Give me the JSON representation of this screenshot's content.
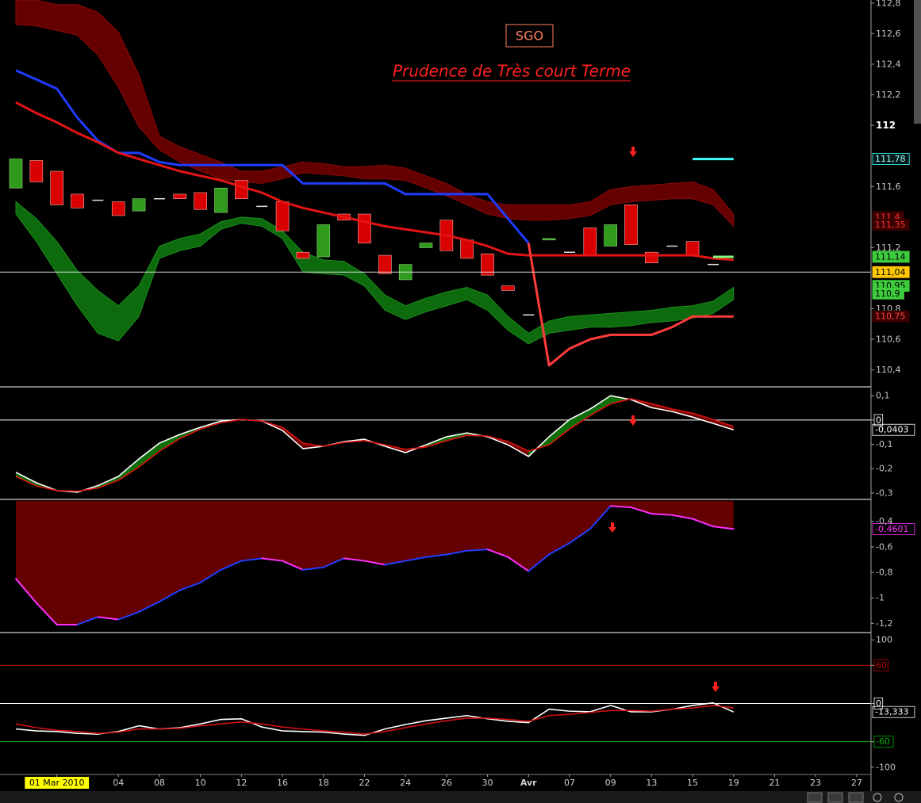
{
  "chart_data": [
    {
      "type": "candlestick",
      "title": "SGO",
      "subtitle": "Prudence de Très court Terme",
      "categories": [
        null,
        null,
        "01 Mar 2010",
        null,
        null,
        "04",
        null,
        "08",
        null,
        "10",
        null,
        "12",
        null,
        "16",
        null,
        "18",
        null,
        "22",
        null,
        "24",
        null,
        "26",
        null,
        "30",
        null,
        "Avr",
        null,
        "07",
        null,
        "09",
        null,
        "13",
        null,
        "15",
        null,
        "19",
        null,
        "21",
        null,
        "23",
        null,
        "27"
      ],
      "open": [
        111.59,
        111.77,
        111.7,
        111.55,
        111.51,
        111.5,
        111.44,
        111.52,
        111.55,
        111.56,
        111.43,
        111.64,
        111.47,
        111.5,
        111.17,
        111.14,
        111.42,
        111.42,
        111.15,
        110.99,
        111.2,
        111.38,
        111.25,
        111.16,
        110.95,
        110.76,
        111.25,
        111.17,
        111.33,
        111.21,
        111.48,
        111.17,
        111.21,
        111.24,
        111.09,
        null,
        null,
        null,
        null,
        null,
        null,
        null
      ],
      "close": [
        111.78,
        111.63,
        111.48,
        111.46,
        111.51,
        111.41,
        111.52,
        111.52,
        111.52,
        111.45,
        111.59,
        111.52,
        111.47,
        111.31,
        111.13,
        111.35,
        111.38,
        111.23,
        111.03,
        111.09,
        111.23,
        111.18,
        111.13,
        111.02,
        110.92,
        110.76,
        111.26,
        111.17,
        111.15,
        111.35,
        111.22,
        111.1,
        111.21,
        111.15,
        111.09,
        null,
        null,
        null,
        null,
        null,
        null,
        null
      ],
      "up_color": "#2f9a1c",
      "down_color": "#d80000",
      "doji_color": "#e0e0e0",
      "bands": [
        {
          "fill": "#640000",
          "stroke": "#8a0a0a",
          "upper": [
            112.82,
            112.82,
            112.79,
            112.79,
            112.74,
            112.61,
            112.33,
            111.93,
            111.86,
            111.81,
            111.76,
            111.7,
            111.7,
            111.73,
            111.76,
            111.75,
            111.73,
            111.73,
            111.74,
            111.72,
            111.67,
            111.62,
            111.55,
            111.5,
            111.48,
            111.48,
            111.48,
            111.48,
            111.5,
            111.58,
            111.6,
            111.61,
            111.62,
            111.63,
            111.58,
            111.42,
            null,
            null,
            null,
            null,
            null,
            null
          ],
          "lower": [
            112.66,
            112.65,
            112.62,
            112.59,
            112.46,
            112.25,
            111.99,
            111.84,
            111.76,
            111.7,
            111.65,
            111.63,
            111.62,
            111.65,
            111.69,
            111.68,
            111.67,
            111.65,
            111.65,
            111.64,
            111.59,
            111.54,
            111.48,
            111.42,
            111.39,
            111.38,
            111.38,
            111.39,
            111.41,
            111.48,
            111.5,
            111.51,
            111.52,
            111.52,
            111.48,
            111.34,
            null,
            null,
            null,
            null,
            null,
            null
          ]
        },
        {
          "fill": "#0d6a0d",
          "stroke": "#1e8c1e",
          "upper": [
            111.5,
            111.39,
            111.24,
            111.05,
            110.92,
            110.82,
            110.95,
            111.21,
            111.26,
            111.29,
            111.37,
            111.4,
            111.39,
            111.31,
            111.17,
            111.12,
            111.11,
            111.03,
            110.89,
            110.82,
            110.87,
            110.91,
            110.94,
            110.89,
            110.75,
            110.64,
            110.72,
            110.75,
            110.76,
            110.77,
            110.78,
            110.79,
            110.81,
            110.82,
            110.85,
            110.94,
            null,
            null,
            null,
            null,
            null,
            null
          ],
          "lower": [
            111.42,
            111.24,
            111.03,
            110.82,
            110.64,
            110.59,
            110.75,
            111.13,
            111.18,
            111.21,
            111.32,
            111.36,
            111.34,
            111.26,
            111.04,
            111.03,
            111.02,
            110.95,
            110.79,
            110.73,
            110.78,
            110.82,
            110.86,
            110.79,
            110.66,
            110.57,
            110.64,
            110.66,
            110.68,
            110.68,
            110.69,
            110.71,
            110.72,
            110.74,
            110.77,
            110.86,
            null,
            null,
            null,
            null,
            null,
            null
          ]
        }
      ],
      "series": [
        {
          "color": "#1f3cff",
          "values": [
            112.36,
            112.3,
            112.24,
            112.05,
            111.9,
            111.82,
            111.82,
            111.76,
            111.74,
            111.74,
            111.74,
            111.74,
            111.74,
            111.74,
            111.62,
            111.62,
            111.62,
            111.62,
            111.62,
            111.55,
            111.55,
            111.55,
            111.55,
            111.55,
            111.39,
            111.23,
            null,
            null,
            null,
            null,
            null,
            null,
            null,
            null,
            null,
            null,
            null,
            null,
            null,
            null,
            null,
            null
          ]
        },
        {
          "color": "#e41414",
          "values": [
            112.15,
            112.08,
            112.02,
            111.95,
            111.89,
            111.82,
            111.78,
            111.74,
            111.7,
            111.67,
            111.64,
            111.6,
            111.56,
            111.5,
            111.46,
            111.43,
            111.4,
            111.37,
            111.34,
            111.32,
            111.3,
            111.28,
            111.25,
            111.21,
            111.16,
            111.15,
            111.15,
            111.15,
            111.15,
            111.15,
            111.15,
            111.15,
            111.15,
            111.15,
            111.13,
            111.12,
            null,
            null,
            null,
            null,
            null,
            null
          ]
        },
        {
          "color": "#ff3b3b",
          "values": [
            null,
            null,
            null,
            null,
            null,
            null,
            null,
            null,
            null,
            null,
            null,
            null,
            null,
            null,
            null,
            null,
            null,
            null,
            null,
            null,
            null,
            null,
            null,
            null,
            null,
            111.23,
            110.43,
            110.54,
            110.6,
            110.63,
            110.63,
            110.63,
            110.68,
            110.75,
            110.75,
            110.75,
            null,
            null,
            null,
            null,
            null,
            null
          ]
        },
        {
          "color": "#40ffff",
          "values": [
            null,
            null,
            null,
            null,
            null,
            null,
            null,
            null,
            null,
            null,
            null,
            null,
            null,
            null,
            null,
            null,
            null,
            null,
            null,
            null,
            null,
            null,
            null,
            null,
            null,
            null,
            null,
            null,
            null,
            null,
            null,
            null,
            null,
            111.78,
            111.78,
            111.78,
            null,
            null,
            null,
            null,
            null,
            null
          ]
        },
        {
          "color": "#80ff80",
          "values": [
            null,
            null,
            null,
            null,
            null,
            null,
            null,
            null,
            null,
            null,
            null,
            null,
            null,
            null,
            null,
            null,
            null,
            null,
            null,
            null,
            null,
            null,
            null,
            null,
            null,
            null,
            null,
            null,
            null,
            null,
            null,
            null,
            null,
            null,
            111.14,
            111.14,
            null,
            null,
            null,
            null,
            null,
            null
          ]
        }
      ],
      "price_labels": [
        {
          "value": 111.78,
          "label": "111,78",
          "color": "#a8ffff",
          "background": "#001818",
          "border": "#40ffff"
        },
        {
          "value": 111.4,
          "label": "111,4",
          "color": "#ff3030",
          "background": "#3a0000"
        },
        {
          "value": 111.35,
          "label": "111,35",
          "color": "#ff3030",
          "background": "#3a0000"
        },
        {
          "value": 111.14,
          "label": "111,14",
          "color": "#000000",
          "background": "#3ccc3c"
        },
        {
          "value": 111.04,
          "label": "111,04",
          "color": "#000000",
          "background": "#ffc800",
          "line": "#d8d8d8"
        },
        {
          "value": 110.95,
          "label": "110,95",
          "color": "#000000",
          "background": "#3ccc3c"
        },
        {
          "value": 110.9,
          "label": "110,9",
          "color": "#000000",
          "background": "#3ccc3c"
        },
        {
          "value": 110.75,
          "label": "110,75",
          "color": "#ff4040",
          "background": "#3a0000"
        }
      ],
      "ylim": [
        110.3,
        112.82
      ],
      "yticks": [
        {
          "value": 112.8,
          "label": "112,8"
        },
        {
          "value": 112.6,
          "label": "112,6"
        },
        {
          "value": 112.4,
          "label": "112,4"
        },
        {
          "value": 112.2,
          "label": "112,2"
        },
        112,
        {
          "value": 111.6,
          "label": "111,6"
        },
        {
          "value": 111.2,
          "label": "111,2"
        },
        {
          "value": 110.8,
          "label": "110,8"
        },
        {
          "value": 110.6,
          "label": "110,6"
        },
        {
          "value": 110.4,
          "label": "110,4"
        }
      ]
    },
    {
      "type": "line",
      "series": [
        {
          "color": "#ffffff",
          "last_label": "-0,0403",
          "values": [
            -0.215,
            -0.258,
            -0.29,
            -0.297,
            -0.27,
            -0.232,
            -0.16,
            -0.095,
            -0.059,
            -0.03,
            -0.004,
            0.002,
            -0.004,
            -0.043,
            -0.118,
            -0.108,
            -0.089,
            -0.079,
            -0.108,
            -0.134,
            -0.102,
            -0.069,
            -0.053,
            -0.069,
            -0.102,
            -0.15,
            -0.069,
            0.002,
            0.045,
            0.1,
            0.084,
            0.051,
            0.035,
            0.012,
            -0.014,
            -0.0403,
            null,
            null,
            null,
            null,
            null,
            null
          ]
        },
        {
          "color": "#e01010",
          "values": [
            -0.232,
            -0.271,
            -0.29,
            -0.293,
            -0.28,
            -0.248,
            -0.193,
            -0.128,
            -0.076,
            -0.037,
            -0.011,
            0.002,
            -0.004,
            -0.03,
            -0.095,
            -0.108,
            -0.092,
            -0.085,
            -0.102,
            -0.121,
            -0.111,
            -0.085,
            -0.063,
            -0.066,
            -0.089,
            -0.128,
            -0.102,
            -0.037,
            0.018,
            0.067,
            0.087,
            0.067,
            0.045,
            0.028,
            0.002,
            -0.027,
            null,
            null,
            null,
            null,
            null,
            null
          ]
        }
      ],
      "fill_between": {
        "up_color": "#0b6e0b",
        "down_color": "#6e0000"
      },
      "levels": [
        {
          "value": 0,
          "color": "#ffffff"
        }
      ],
      "ylim": [
        -0.32,
        0.13
      ],
      "yticks": [
        {
          "value": 0.1,
          "label": "0,1"
        },
        0,
        {
          "value": -0.1,
          "label": "-0,1"
        },
        {
          "value": -0.2,
          "label": "-0,2"
        },
        {
          "value": -0.3,
          "label": "-0,3"
        }
      ]
    },
    {
      "type": "line",
      "series": [
        {
          "color": "#ff30ff",
          "rise_color": "#2040ff",
          "last_label": "-0,4601",
          "values": [
            -0.85,
            -1.04,
            -1.21,
            -1.21,
            -1.15,
            -1.17,
            -1.11,
            -1.03,
            -0.94,
            -0.88,
            -0.78,
            -0.71,
            -0.69,
            -0.71,
            -0.78,
            -0.76,
            -0.69,
            -0.71,
            -0.74,
            -0.71,
            -0.68,
            -0.66,
            -0.63,
            -0.62,
            -0.68,
            -0.79,
            -0.66,
            -0.57,
            -0.46,
            -0.28,
            -0.29,
            -0.34,
            -0.35,
            -0.38,
            -0.44,
            -0.4601,
            null,
            null,
            null,
            null,
            null,
            null
          ]
        }
      ],
      "area_color": "#640000",
      "ylim": [
        -1.26,
        -0.24
      ],
      "yticks": [
        {
          "value": -0.4,
          "label": "-0,4"
        },
        {
          "value": -0.6,
          "label": "-0,6"
        },
        {
          "value": -0.8,
          "label": "-0,8"
        },
        -1,
        {
          "value": -1.2,
          "label": "-1,2"
        }
      ]
    },
    {
      "type": "line",
      "series": [
        {
          "color": "#ffffff",
          "last_label": "-13,333",
          "values": [
            -40,
            -43,
            -44,
            -47,
            -48,
            -44,
            -35,
            -40,
            -38,
            -32,
            -25,
            -24,
            -37,
            -43,
            -44,
            -45,
            -48,
            -50,
            -40,
            -33,
            -27,
            -23,
            -19,
            -24,
            -28,
            -30,
            -9,
            -12,
            -13,
            -3,
            -13,
            -13,
            -9,
            -3,
            1,
            -13.333,
            null,
            null,
            null,
            null,
            null,
            null
          ]
        },
        {
          "color": "#d41010",
          "values": [
            -32,
            -38,
            -42,
            -44,
            -47,
            -45,
            -40,
            -40,
            -39,
            -35,
            -32,
            -29,
            -32,
            -37,
            -40,
            -43,
            -45,
            -48,
            -44,
            -38,
            -32,
            -27,
            -23,
            -23,
            -25,
            -28,
            -19,
            -17,
            -14,
            -11,
            -11,
            -12,
            -9,
            -7,
            -3,
            -7,
            null,
            null,
            null,
            null,
            null,
            null
          ]
        }
      ],
      "levels": [
        {
          "value": 60,
          "color": "#c00000"
        },
        {
          "value": 0,
          "color": "#ffffff"
        },
        {
          "value": -60,
          "color": "#00b000"
        }
      ],
      "ylim": [
        -109,
        109
      ],
      "yticks": [
        100,
        60,
        0,
        -60,
        -100
      ]
    }
  ]
}
